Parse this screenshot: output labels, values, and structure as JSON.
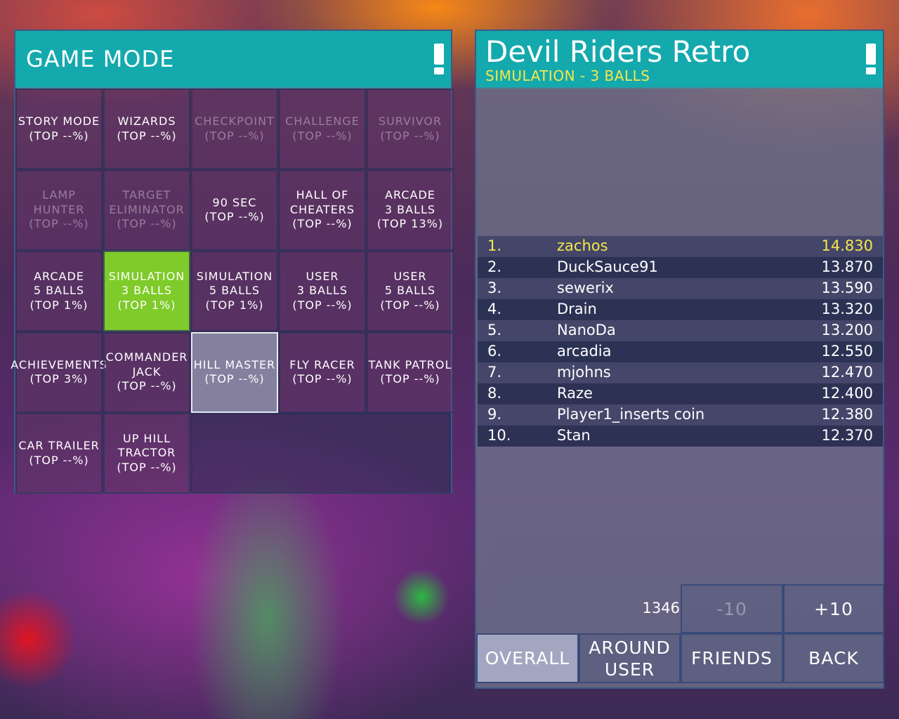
{
  "left": {
    "title": "GAME MODE",
    "alert_icon": "exclamation-icon"
  },
  "modes": [
    {
      "label": "STORY MODE\n(TOP --%)",
      "state": "normal"
    },
    {
      "label": "WIZARDS\n(TOP --%)",
      "state": "normal"
    },
    {
      "label": "CHECKPOINT\n(TOP --%)",
      "state": "dim"
    },
    {
      "label": "CHALLENGE\n(TOP --%)",
      "state": "dim"
    },
    {
      "label": "SURVIVOR\n(TOP --%)",
      "state": "dim"
    },
    {
      "label": "LAMP\nHUNTER\n(TOP --%)",
      "state": "dim"
    },
    {
      "label": "TARGET\nELIMINATOR\n(TOP --%)",
      "state": "dim"
    },
    {
      "label": "90 SEC\n(TOP --%)",
      "state": "normal"
    },
    {
      "label": "HALL OF\nCHEATERS\n(TOP --%)",
      "state": "normal"
    },
    {
      "label": "ARCADE\n3 BALLS\n(TOP 13%)",
      "state": "normal"
    },
    {
      "label": "ARCADE\n5 BALLS\n(TOP 1%)",
      "state": "normal"
    },
    {
      "label": "SIMULATION\n3 BALLS\n(TOP 1%)",
      "state": "selected"
    },
    {
      "label": "SIMULATION\n5 BALLS\n(TOP 1%)",
      "state": "normal"
    },
    {
      "label": "USER\n3 BALLS\n(TOP --%)",
      "state": "normal"
    },
    {
      "label": "USER\n5 BALLS\n(TOP --%)",
      "state": "normal"
    },
    {
      "label": "ACHIEVEMENTS\n(TOP 3%)",
      "state": "normal"
    },
    {
      "label": "COMMANDER\nJACK\n(TOP --%)",
      "state": "normal"
    },
    {
      "label": "HILL MASTER\n(TOP --%)",
      "state": "focused"
    },
    {
      "label": "FLY RACER\n(TOP --%)",
      "state": "normal"
    },
    {
      "label": "TANK PATROL\n(TOP --%)",
      "state": "normal"
    },
    {
      "label": "CAR TRAILER\n(TOP --%)",
      "state": "normal"
    },
    {
      "label": "UP HILL\nTRACTOR\n(TOP --%)",
      "state": "normal"
    }
  ],
  "right": {
    "title": "Devil Riders Retro",
    "subtitle": "SIMULATION - 3 BALLS",
    "alert_icon": "exclamation-icon"
  },
  "leaderboard": [
    {
      "rank": "1.",
      "name": "zachos",
      "score": "14.830"
    },
    {
      "rank": "2.",
      "name": "DuckSauce91",
      "score": "13.870"
    },
    {
      "rank": "3.",
      "name": "sewerix",
      "score": "13.590"
    },
    {
      "rank": "4.",
      "name": "Drain",
      "score": "13.320"
    },
    {
      "rank": "5.",
      "name": "NanoDa",
      "score": "13.200"
    },
    {
      "rank": "6.",
      "name": "arcadia",
      "score": "12.550"
    },
    {
      "rank": "7.",
      "name": "mjohns",
      "score": "12.470"
    },
    {
      "rank": "8.",
      "name": "Raze",
      "score": "12.400"
    },
    {
      "rank": "9.",
      "name": "Player1_inserts coin",
      "score": "12.380"
    },
    {
      "rank": "10.",
      "name": "Stan",
      "score": "12.370"
    }
  ],
  "paging": {
    "position": "1346",
    "prev_label": "-10",
    "next_label": "+10"
  },
  "tabs": {
    "overall": "OVERALL",
    "around_user": "AROUND\nUSER",
    "friends": "FRIENDS",
    "back": "BACK"
  },
  "colors": {
    "header": "#14a9ad",
    "selected": "#7fcb2a",
    "highlight_text": "#f5e84a"
  }
}
